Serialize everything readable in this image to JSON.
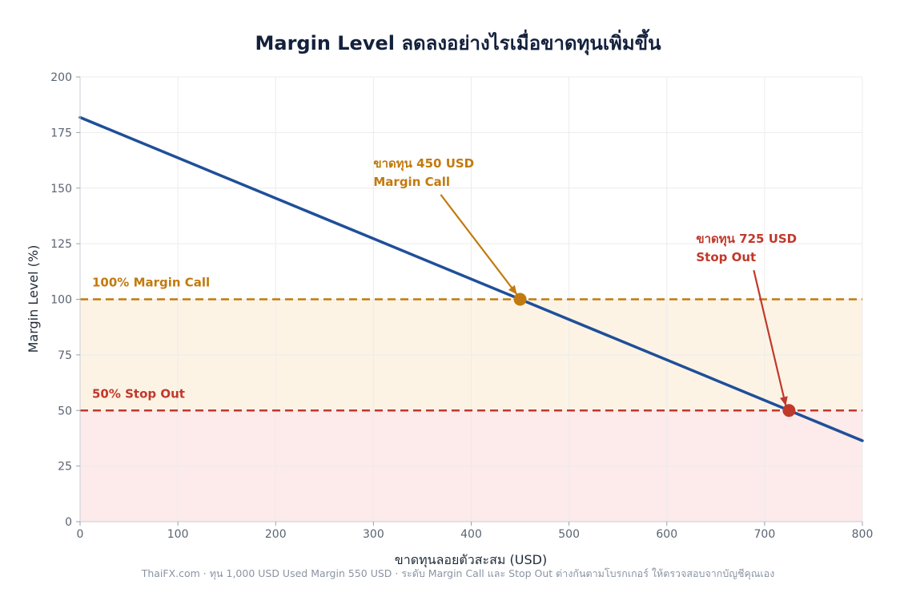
{
  "title": "Margin Level ลดลงอย่างไรเมื่อขาดทุนเพิ่มขึ้น",
  "footer": "ThaiFX.com  ·  ทุน 1,000 USD  Used Margin 550 USD  ·  ระดับ Margin Call และ Stop Out ต่างกันตามโบรกเกอร์ ให้ตรวจสอบจากบัญชีคุณเอง",
  "colors": {
    "line": "#1f4f99",
    "margin_call": "#c27a0e",
    "stop_out": "#c0392b",
    "margin_call_zone": "#fdf3e5",
    "stop_out_zone": "#fdeaea",
    "grid": "#ececec"
  },
  "chart_data": {
    "type": "line",
    "xlabel": "ขาดทุนลอยตัวสะสม (USD)",
    "ylabel": "Margin Level (%)",
    "xlim": [
      0,
      800
    ],
    "ylim": [
      0,
      200
    ],
    "xticks": [
      0,
      100,
      200,
      300,
      400,
      500,
      600,
      700,
      800
    ],
    "yticks": [
      0,
      25,
      50,
      75,
      100,
      125,
      150,
      175,
      200
    ],
    "grid": true,
    "series": [
      {
        "x": [
          0,
          800
        ],
        "y": [
          181.8,
          36.4
        ]
      }
    ],
    "thresholds": [
      {
        "value": 100,
        "label": "100%  Margin Call",
        "color": "#c27a0e"
      },
      {
        "value": 50,
        "label": "50%  Stop Out",
        "color": "#c0392b"
      }
    ],
    "zones": [
      {
        "from": 50,
        "to": 100,
        "color": "#fdf3e5"
      },
      {
        "from": 0,
        "to": 50,
        "color": "#fdeaea"
      }
    ],
    "points": [
      {
        "x": 450,
        "y": 100,
        "color": "#c27a0e",
        "text1": "ขาดทุน 450 USD",
        "text2": "Margin Call",
        "text_x": 300,
        "text_y": 155
      },
      {
        "x": 725,
        "y": 50,
        "color": "#c0392b",
        "text1": "ขาดทุน 725 USD",
        "text2": "Stop Out",
        "text_x": 630,
        "text_y": 121
      }
    ]
  }
}
